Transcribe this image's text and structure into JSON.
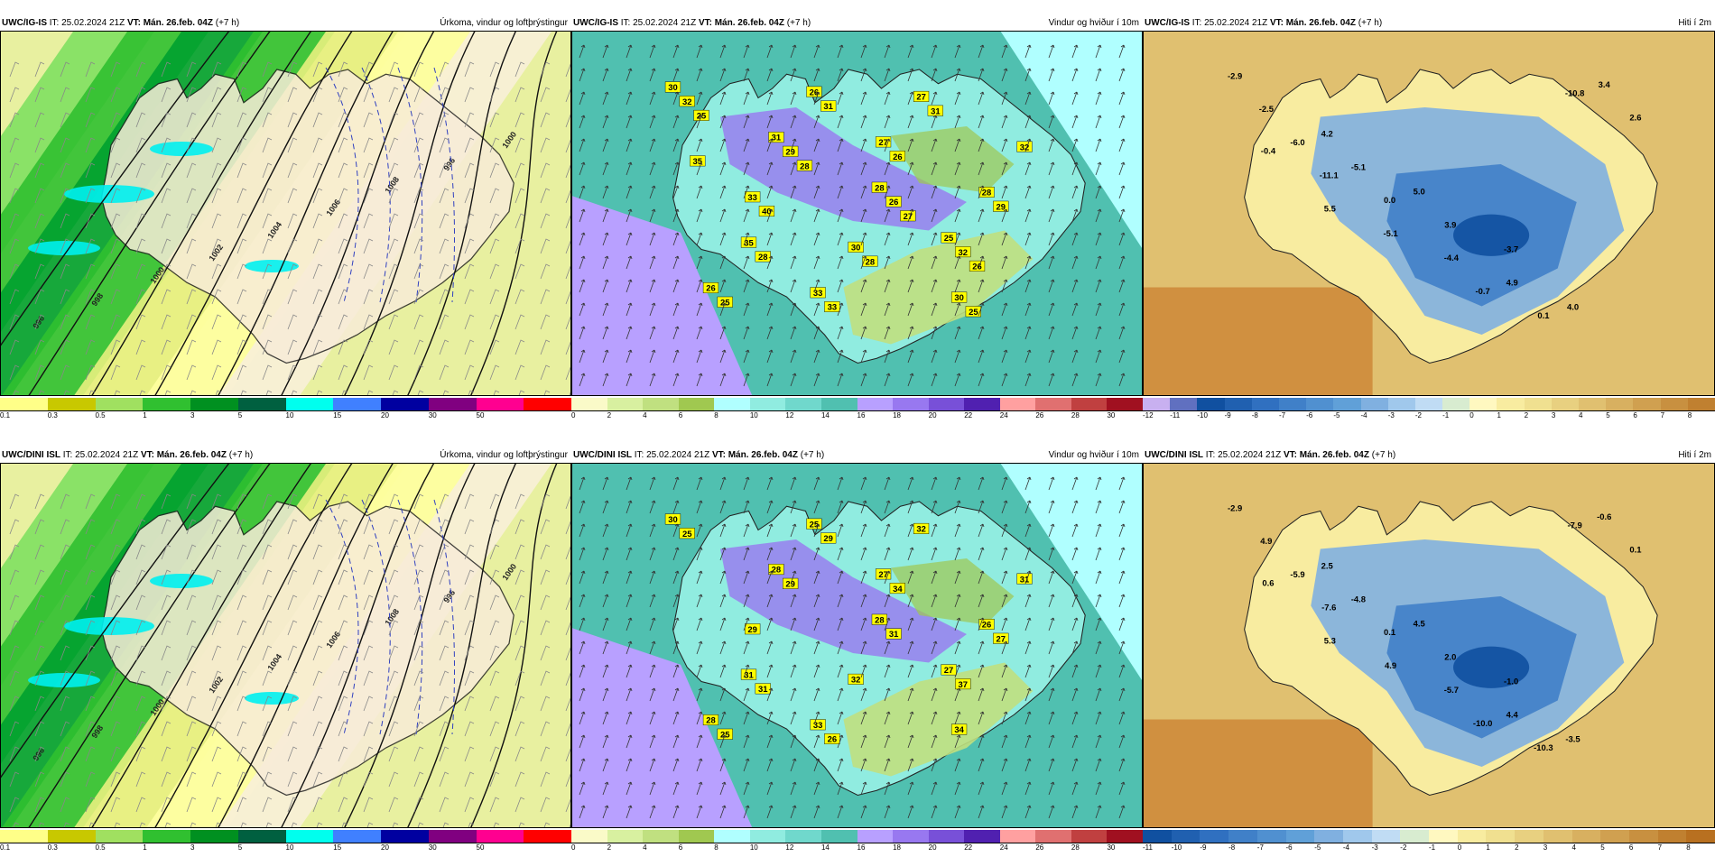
{
  "panels": [
    {
      "id": "p1",
      "model": "UWC/IG-IS",
      "it": "IT: 25.02.2024 21Z",
      "vt_label": "VT:",
      "vt": "Mán. 26.feb. 04Z",
      "lead": "(+7 h)",
      "title": "Úrkoma, vindur og loftþrýstingur",
      "kind": "precip",
      "scale": {
        "colors": [
          "#ffff88",
          "#c8c800",
          "#a0e060",
          "#30c030",
          "#009020",
          "#006040",
          "#00ffee",
          "#4080ff",
          "#0000a0",
          "#800080",
          "#ff0090",
          "#ff0000"
        ],
        "ticks": [
          "0.1",
          "0.3",
          "0.5",
          "1",
          "3",
          "5",
          "10",
          "15",
          "20",
          "30",
          "50",
          ""
        ]
      },
      "contours": [
        "996",
        "998",
        "1000",
        "1002",
        "1004",
        "1006",
        "1008",
        "996",
        "1000"
      ]
    },
    {
      "id": "p2",
      "model": "UWC/IG-IS",
      "it": "IT: 25.02.2024 21Z",
      "vt_label": "VT:",
      "vt": "Mán. 26.feb. 04Z",
      "lead": "(+7 h)",
      "title": "Vindur og hviður í 10m",
      "kind": "wind",
      "scale": {
        "colors": [
          "#fafac8",
          "#d8f0a0",
          "#c0e080",
          "#a0c850",
          "#b0ffff",
          "#90ece0",
          "#70d8cc",
          "#50c0b0",
          "#b8a0ff",
          "#9878f0",
          "#7850d8",
          "#5020b0",
          "#ffa0a0",
          "#e07070",
          "#c04040",
          "#a01020"
        ],
        "ticks": [
          "0",
          "2",
          "4",
          "6",
          "8",
          "10",
          "12",
          "14",
          "16",
          "18",
          "20",
          "22",
          "24",
          "26",
          "28",
          "30"
        ]
      },
      "gusts": [
        "30",
        "31",
        "28",
        "25",
        "26",
        "26",
        "27",
        "28",
        "35",
        "33",
        "27",
        "32",
        "33",
        "30",
        "30",
        "32",
        "29",
        "26",
        "32",
        "25",
        "31",
        "26",
        "29",
        "28",
        "33",
        "31",
        "35",
        "40",
        "28",
        "25",
        "25",
        "28",
        "27",
        "26"
      ]
    },
    {
      "id": "p3",
      "model": "UWC/IG-IS",
      "it": "IT: 25.02.2024 21Z",
      "vt_label": "VT:",
      "vt": "Mán. 26.feb. 04Z",
      "lead": "(+7 h)",
      "title": "Hiti í 2m",
      "kind": "temp",
      "scale": {
        "colors": [
          "#c8b0f0",
          "#6070c0",
          "#1050a0",
          "#2060b0",
          "#3070c0",
          "#4080c8",
          "#5090d0",
          "#60a0d8",
          "#80b0e0",
          "#a0c8ec",
          "#c0dcf4",
          "#d8ecd0",
          "#fff8c0",
          "#f8eca0",
          "#f0e090",
          "#e8d080",
          "#e0c070",
          "#d8b060",
          "#d0a050",
          "#c89040",
          "#c08030"
        ],
        "ticks": [
          "-12",
          "-11",
          "-10",
          "-9",
          "-8",
          "-7",
          "-6",
          "-5",
          "-4",
          "-3",
          "-2",
          "-1",
          "0",
          "1",
          "2",
          "3",
          "4",
          "5",
          "6",
          "7",
          "8"
        ]
      },
      "values": [
        "-2.9",
        "4.2",
        "5.0",
        "-3.7",
        "4.0",
        "-2.5",
        "-5.1",
        "3.9",
        "4.9",
        "3.4",
        "-6.0",
        "0.0",
        "-4.4",
        "0.1",
        "2.6",
        "-11.1",
        "-5.1",
        "-0.7",
        "-10.8",
        "-0.4",
        "5.5"
      ]
    },
    {
      "id": "p4",
      "model": "UWC/DINI ISL",
      "it": "IT: 25.02.2024 21Z",
      "vt_label": "VT:",
      "vt": "Mán. 26.feb. 04Z",
      "lead": "(+7 h)",
      "title": "Úrkoma, vindur og loftþrýstingur",
      "kind": "precip",
      "scale": {
        "colors": [
          "#ffff88",
          "#c8c800",
          "#a0e060",
          "#30c030",
          "#009020",
          "#006040",
          "#00ffee",
          "#4080ff",
          "#0000a0",
          "#800080",
          "#ff0090",
          "#ff0000"
        ],
        "ticks": [
          "0.1",
          "0.3",
          "0.5",
          "1",
          "3",
          "5",
          "10",
          "15",
          "20",
          "30",
          "50",
          ""
        ]
      },
      "contours": [
        "996",
        "998",
        "1000",
        "1002",
        "1004",
        "1006",
        "1008",
        "996",
        "1000"
      ]
    },
    {
      "id": "p5",
      "model": "UWC/DINI ISL",
      "it": "IT: 25.02.2024 21Z",
      "vt_label": "VT:",
      "vt": "Mán. 26.feb. 04Z",
      "lead": "(+7 h)",
      "title": "Vindur og hviður í 10m",
      "kind": "wind",
      "scale": {
        "colors": [
          "#fafac8",
          "#d8f0a0",
          "#c0e080",
          "#a0c850",
          "#b0ffff",
          "#90ece0",
          "#70d8cc",
          "#50c0b0",
          "#b8a0ff",
          "#9878f0",
          "#7850d8",
          "#5020b0",
          "#ffa0a0",
          "#e07070",
          "#c04040",
          "#a01020"
        ],
        "ticks": [
          "0",
          "2",
          "4",
          "6",
          "8",
          "10",
          "12",
          "14",
          "16",
          "18",
          "20",
          "22",
          "24",
          "26",
          "28",
          "30"
        ]
      },
      "gusts": [
        "30",
        "28",
        "28",
        "27",
        "28",
        "25",
        "27",
        "26",
        "31",
        "33",
        "32",
        "31",
        "29",
        "32",
        "34",
        "25",
        "29",
        "31",
        "37",
        "25",
        "29",
        "34",
        "27",
        "31",
        "26"
      ]
    },
    {
      "id": "p6",
      "model": "UWC/DINI ISL",
      "it": "IT: 25.02.2024 21Z",
      "vt_label": "VT:",
      "vt": "Mán. 26.feb. 04Z",
      "lead": "(+7 h)",
      "title": "Hiti í 2m",
      "kind": "temp",
      "scale": {
        "colors": [
          "#1050a0",
          "#2060b0",
          "#3070c0",
          "#4080c8",
          "#5090d0",
          "#60a0d8",
          "#80b0e0",
          "#a0c8ec",
          "#c0dcf4",
          "#d8ecd0",
          "#fff8c0",
          "#f8eca0",
          "#f0e090",
          "#e8d080",
          "#e0c070",
          "#d8b060",
          "#d0a050",
          "#c89040",
          "#c08030",
          "#b87020"
        ],
        "ticks": [
          "-11",
          "-10",
          "-9",
          "-8",
          "-7",
          "-6",
          "-5",
          "-4",
          "-3",
          "-2",
          "-1",
          "0",
          "1",
          "2",
          "3",
          "4",
          "5",
          "6",
          "7",
          "8"
        ]
      },
      "values": [
        "-2.9",
        "2.5",
        "4.5",
        "-1.0",
        "-3.5",
        "4.9",
        "-4.8",
        "2.0",
        "4.4",
        "-0.6",
        "-5.9",
        "0.1",
        "-5.7",
        "-10.3",
        "0.1",
        "-7.6",
        "4.9",
        "-10.0",
        "-7.9",
        "0.6",
        "5.3"
      ]
    }
  ]
}
